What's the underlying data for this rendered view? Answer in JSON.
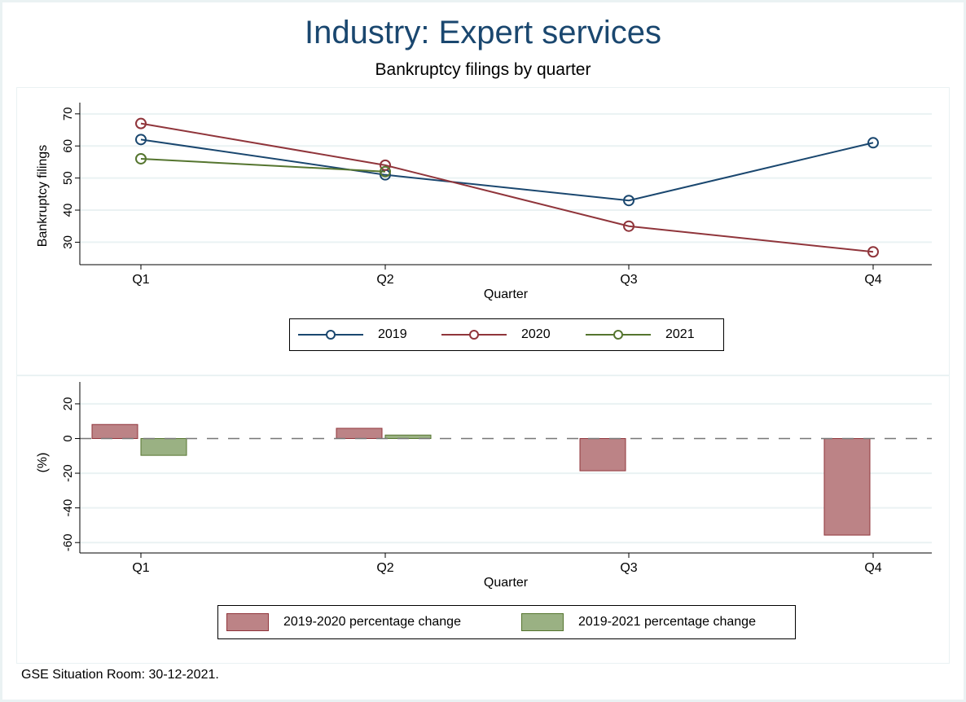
{
  "title": "Industry: Expert services",
  "subtitle": "Bankruptcy filings by quarter",
  "note": "GSE Situation Room: 30-12-2021.",
  "colors": {
    "s2019": "#1A476F",
    "s2020": "#90353B",
    "s2021": "#55752F",
    "bar2020": "#BC8386",
    "bar2020_edge": "#90353B",
    "bar2021": "#9AB183",
    "bar2021_edge": "#55752F",
    "title": "#1A476F",
    "grid": "#EAF2F3"
  },
  "chart_data": [
    {
      "type": "line",
      "title": "Bankruptcy filings by quarter",
      "xlabel": "Quarter",
      "ylabel": "Bankruptcy filings",
      "categories": [
        "Q1",
        "Q2",
        "Q3",
        "Q4"
      ],
      "yticks": [
        30,
        40,
        50,
        60,
        70
      ],
      "ylim": [
        23,
        73
      ],
      "grid": true,
      "legend_position": "bottom",
      "series": [
        {
          "name": "2019",
          "values": [
            62,
            51,
            43,
            61
          ]
        },
        {
          "name": "2020",
          "values": [
            67,
            54,
            35,
            27
          ]
        },
        {
          "name": "2021",
          "values": [
            56,
            52,
            null,
            null
          ]
        }
      ]
    },
    {
      "type": "bar",
      "xlabel": "Quarter",
      "ylabel": "(%)",
      "categories": [
        "Q1",
        "Q2",
        "Q3",
        "Q4"
      ],
      "yticks": [
        20,
        0,
        -20,
        -40,
        -60
      ],
      "ylim": [
        -66,
        27
      ],
      "grid": true,
      "reference_line": 0,
      "legend_position": "bottom",
      "series": [
        {
          "name": "2019-2020 percentage change",
          "values": [
            8.1,
            5.9,
            -18.6,
            -55.7
          ]
        },
        {
          "name": "2019-2021 percentage change",
          "values": [
            -9.7,
            2.0,
            null,
            null
          ]
        }
      ]
    }
  ]
}
